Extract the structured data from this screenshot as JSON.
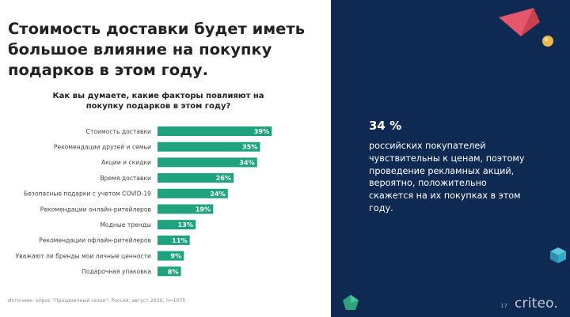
{
  "headline": "Стоимость доставки будет иметь большое влияние на покупку подарков в этом году.",
  "question": "Как вы думаете, какие факторы повлияют на покупку подарков в этом году?",
  "chart_data": {
    "type": "bar",
    "orientation": "horizontal",
    "title": "",
    "xlabel": "",
    "ylabel": "",
    "xlim": [
      0,
      40
    ],
    "grid": false,
    "legend": "none",
    "bar_color": "#1fa37f",
    "categories": [
      "Стоимость доставки",
      "Рекомендации друзей и семьи",
      "Акции и скидки",
      "Время доставки",
      "Безопасные подарки с учетом COVID-19",
      "Рекомендации онлайн-ритейлеров",
      "Модные тренды",
      "Рекомендации офлайн-ритейлеров",
      "Уважают ли бренды мои личные ценности",
      "Подарочная упаковка"
    ],
    "values": [
      39,
      35,
      34,
      26,
      24,
      19,
      13,
      11,
      9,
      8
    ],
    "value_labels": [
      "39%",
      "35%",
      "34%",
      "26%",
      "24%",
      "19%",
      "13%",
      "11%",
      "9%",
      "8%"
    ]
  },
  "source": "Источник: опрос \"Праздничный сезон\", Россия, август 2020, n=1075",
  "stat": {
    "value": "34 %",
    "text": "российских покупателей чувствительны к ценам, поэтому проведение рекламных акций, вероятно, положительно скажется на их покупках в этом году."
  },
  "page_number": "17",
  "logo": "criteo.",
  "colors": {
    "panel": "#0e2a52",
    "bar": "#1fa37f",
    "accent_pink": "#e5566b",
    "accent_yellow": "#e9b949",
    "accent_teal": "#36a9c9"
  }
}
